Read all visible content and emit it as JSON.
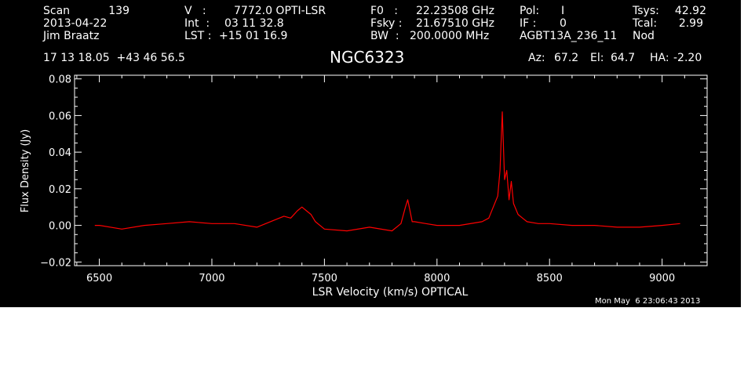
{
  "header": {
    "col1": {
      "scan_label": "Scan",
      "scan_value": "139",
      "date": "2013-04-22",
      "observer": "Jim Braatz",
      "coords": "17 13 18.05  +43 46 56.5"
    },
    "col2": {
      "v_label": "V   :",
      "v_value": "7772.0 OPTI-LSR",
      "int_label": "Int  :",
      "int_value": "03 11 32.8",
      "lst_label": "LST :",
      "lst_value": "+15 01 16.9"
    },
    "col3": {
      "f0_label": "F0   :",
      "f0_value": "22.23508 GHz",
      "fsky_label": "Fsky :",
      "fsky_value": "21.67510 GHz",
      "bw_label": "BW  :",
      "bw_value": "200.0000 MHz"
    },
    "col4": {
      "pol_label": "Pol:",
      "pol_value": "I",
      "if_label": "IF :",
      "if_value": "0",
      "project": "AGBT13A_236_11"
    },
    "col5": {
      "tsys_label": "Tsys:",
      "tsys_value": "42.92",
      "tcal_label": "Tcal:",
      "tcal_value": "2.99",
      "mode": "Nod"
    },
    "source": "NGC6323",
    "az_label": "Az:",
    "az_value": "67.2",
    "el_label": "El:",
    "el_value": "64.7",
    "ha_label": "HA:",
    "ha_value": "-2.20"
  },
  "timestamp": "Mon May  6 23:06:43 2013",
  "colors": {
    "background": "#000000",
    "axes": "#ffffff",
    "spectrum": "#ff0000"
  },
  "chart_data": {
    "type": "line",
    "xlabel": "LSR Velocity (km/s) OPTICAL",
    "ylabel": "Flux Density (Jy)",
    "xlim": [
      6390,
      9200
    ],
    "ylim": [
      -0.022,
      0.082
    ],
    "xticks": [
      6500,
      7000,
      7500,
      8000,
      8500,
      9000
    ],
    "xtick_labels": [
      "6500",
      "7000",
      "7500",
      "8000",
      "8500",
      "9000"
    ],
    "yticks": [
      -0.02,
      0.0,
      0.02,
      0.04,
      0.06,
      0.08
    ],
    "ytick_labels": [
      "−0.02",
      "0.00",
      "0.02",
      "0.04",
      "0.06",
      "0.08"
    ],
    "grid": false,
    "series": [
      {
        "color": "#ff0000",
        "x": [
          6480,
          6500,
          6600,
          6700,
          6800,
          6900,
          7000,
          7100,
          7200,
          7280,
          7320,
          7350,
          7380,
          7400,
          7420,
          7440,
          7460,
          7500,
          7600,
          7700,
          7800,
          7840,
          7860,
          7870,
          7880,
          7890,
          7900,
          7950,
          8000,
          8100,
          8200,
          8230,
          8250,
          8270,
          8280,
          8290,
          8300,
          8310,
          8320,
          8330,
          8340,
          8360,
          8380,
          8400,
          8450,
          8500,
          8600,
          8700,
          8800,
          8900,
          9000,
          9080
        ],
        "y": [
          0.0,
          0.0,
          -0.002,
          0.0,
          0.001,
          0.002,
          0.001,
          0.001,
          -0.001,
          0.003,
          0.005,
          0.004,
          0.008,
          0.01,
          0.008,
          0.006,
          0.002,
          -0.002,
          -0.003,
          -0.001,
          -0.003,
          0.001,
          0.01,
          0.014,
          0.008,
          0.002,
          0.002,
          0.001,
          0.0,
          0.0,
          0.002,
          0.004,
          0.01,
          0.016,
          0.03,
          0.062,
          0.025,
          0.03,
          0.014,
          0.024,
          0.012,
          0.006,
          0.004,
          0.002,
          0.001,
          0.001,
          0.0,
          0.0,
          -0.001,
          -0.001,
          0.0,
          0.001
        ]
      }
    ]
  }
}
